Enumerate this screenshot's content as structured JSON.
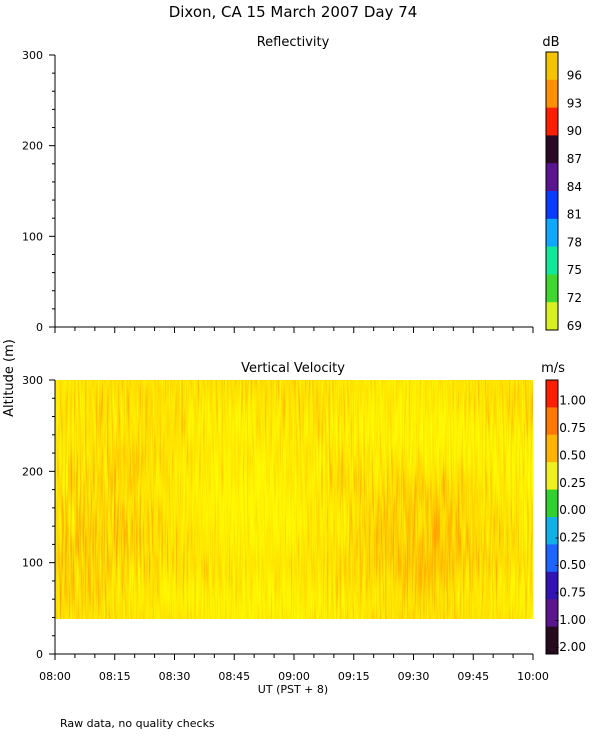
{
  "figure": {
    "title": "Dixon, CA 15 March 2007  Day  74",
    "ylabel": "Altitude (m)",
    "xlabel": "UT  (PST + 8)",
    "footnote": "Raw data, no quality checks",
    "x_ticks": [
      "08:00",
      "08:15",
      "08:30",
      "08:45",
      "09:00",
      "09:15",
      "09:30",
      "09:45",
      "10:00"
    ]
  },
  "chart_data": [
    {
      "type": "heatmap",
      "title": "Reflectivity",
      "colorbar_unit": "dB",
      "xlim": [
        "08:00",
        "10:00"
      ],
      "ylim": [
        0,
        300
      ],
      "y_ticks": [
        0,
        100,
        200,
        300
      ],
      "data_present": false,
      "colorbar": {
        "labels": [
          "96",
          "93",
          "90",
          "87",
          "84",
          "81",
          "78",
          "75",
          "72",
          "69"
        ],
        "colors": [
          "#f5c400",
          "#ff9000",
          "#ff1e00",
          "#2a0a26",
          "#5a1490",
          "#0a3cff",
          "#10a8ff",
          "#10e89a",
          "#40d830",
          "#d8f020"
        ]
      }
    },
    {
      "type": "heatmap",
      "title": "Vertical Velocity",
      "colorbar_unit": "m/s",
      "xlim": [
        "08:00",
        "10:00"
      ],
      "ylim": [
        0,
        300
      ],
      "y_ticks": [
        0,
        100,
        200,
        300
      ],
      "data_altitude_range": [
        40,
        300
      ],
      "dominant_values": [
        0.5,
        0.75,
        1.0
      ],
      "colorbar": {
        "labels": [
          "1.00",
          "0.75",
          "0.50",
          "0.25",
          "0.00",
          "-0.25",
          "-0.50",
          "-0.75",
          "-1.00",
          "-2.00"
        ],
        "colors": [
          "#ff1e00",
          "#ff7800",
          "#ffb400",
          "#f0f020",
          "#30d030",
          "#10b0e8",
          "#1e64ff",
          "#3214b4",
          "#5a148c",
          "#280a1e"
        ]
      }
    }
  ]
}
